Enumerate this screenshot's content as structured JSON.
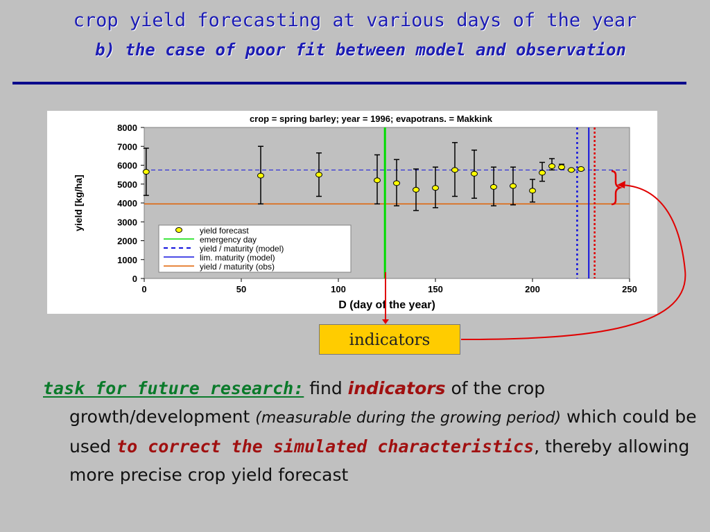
{
  "slide": {
    "title_line1": "crop yield forecasting at various days of the year",
    "title_line2": "b) the case of poor fit between model and observation",
    "indicators_label": "indicators",
    "task_label": "task for future research:",
    "task_find": " find ",
    "task_indicators": "indicators",
    "task_text1": " of the crop growth/development ",
    "task_italic": "(measurable during the growing period)",
    "task_text2": " which could be used ",
    "task_correct": "to correct the simulated characteristics",
    "task_text3": ", thereby allowing more precise crop yield forecast"
  },
  "chart_data": {
    "type": "scatter",
    "title": "crop = spring barley; year = 1996; evapotrans. = Makkink",
    "xlabel": "D  (day of the year)",
    "ylabel": "yield  [kg/ha]",
    "xlim": [
      0,
      250
    ],
    "ylim": [
      0,
      8000
    ],
    "xticks": [
      0,
      50,
      100,
      150,
      200,
      250
    ],
    "yticks": [
      0,
      1000,
      2000,
      3000,
      4000,
      5000,
      6000,
      7000,
      8000
    ],
    "grid": false,
    "legend_position": "bottom-left",
    "series": [
      {
        "name": "yield forecast",
        "color": "#ffff00",
        "points": [
          {
            "x": 1,
            "y": 5650,
            "low": 4400,
            "high": 6900
          },
          {
            "x": 60,
            "y": 5450,
            "low": 3950,
            "high": 7000
          },
          {
            "x": 90,
            "y": 5500,
            "low": 4350,
            "high": 6650
          },
          {
            "x": 120,
            "y": 5200,
            "low": 3950,
            "high": 6550
          },
          {
            "x": 130,
            "y": 5050,
            "low": 3850,
            "high": 6300
          },
          {
            "x": 140,
            "y": 4700,
            "low": 3600,
            "high": 5800
          },
          {
            "x": 150,
            "y": 4800,
            "low": 3750,
            "high": 5900
          },
          {
            "x": 160,
            "y": 5750,
            "low": 4350,
            "high": 7200
          },
          {
            "x": 170,
            "y": 5550,
            "low": 4250,
            "high": 6800
          },
          {
            "x": 180,
            "y": 4850,
            "low": 3850,
            "high": 5900
          },
          {
            "x": 190,
            "y": 4900,
            "low": 3900,
            "high": 5900
          },
          {
            "x": 200,
            "y": 4650,
            "low": 4050,
            "high": 5250
          },
          {
            "x": 205,
            "y": 5600,
            "low": 5150,
            "high": 6150
          },
          {
            "x": 210,
            "y": 5950,
            "low": 5750,
            "high": 6350
          },
          {
            "x": 215,
            "y": 5900,
            "low": 5800,
            "high": 6050
          },
          {
            "x": 220,
            "y": 5750,
            "low": 5700,
            "high": 5800
          },
          {
            "x": 225,
            "y": 5800,
            "low": 5750,
            "high": 5850
          }
        ]
      },
      {
        "name": "emergency day",
        "color": "#00dd00",
        "style": "vertical-solid",
        "x": 124
      },
      {
        "name": "yield / maturity (model)",
        "color": "#1111dd",
        "style": "dashed",
        "y": 5750,
        "x": 223
      },
      {
        "name": "lim. maturity (model)",
        "color": "#1111dd",
        "style": "vertical-solid",
        "x": 229
      },
      {
        "name": "yield / maturity (obs)",
        "color": "#e06000",
        "style": "solid",
        "y": 3950,
        "x": 232
      }
    ]
  }
}
